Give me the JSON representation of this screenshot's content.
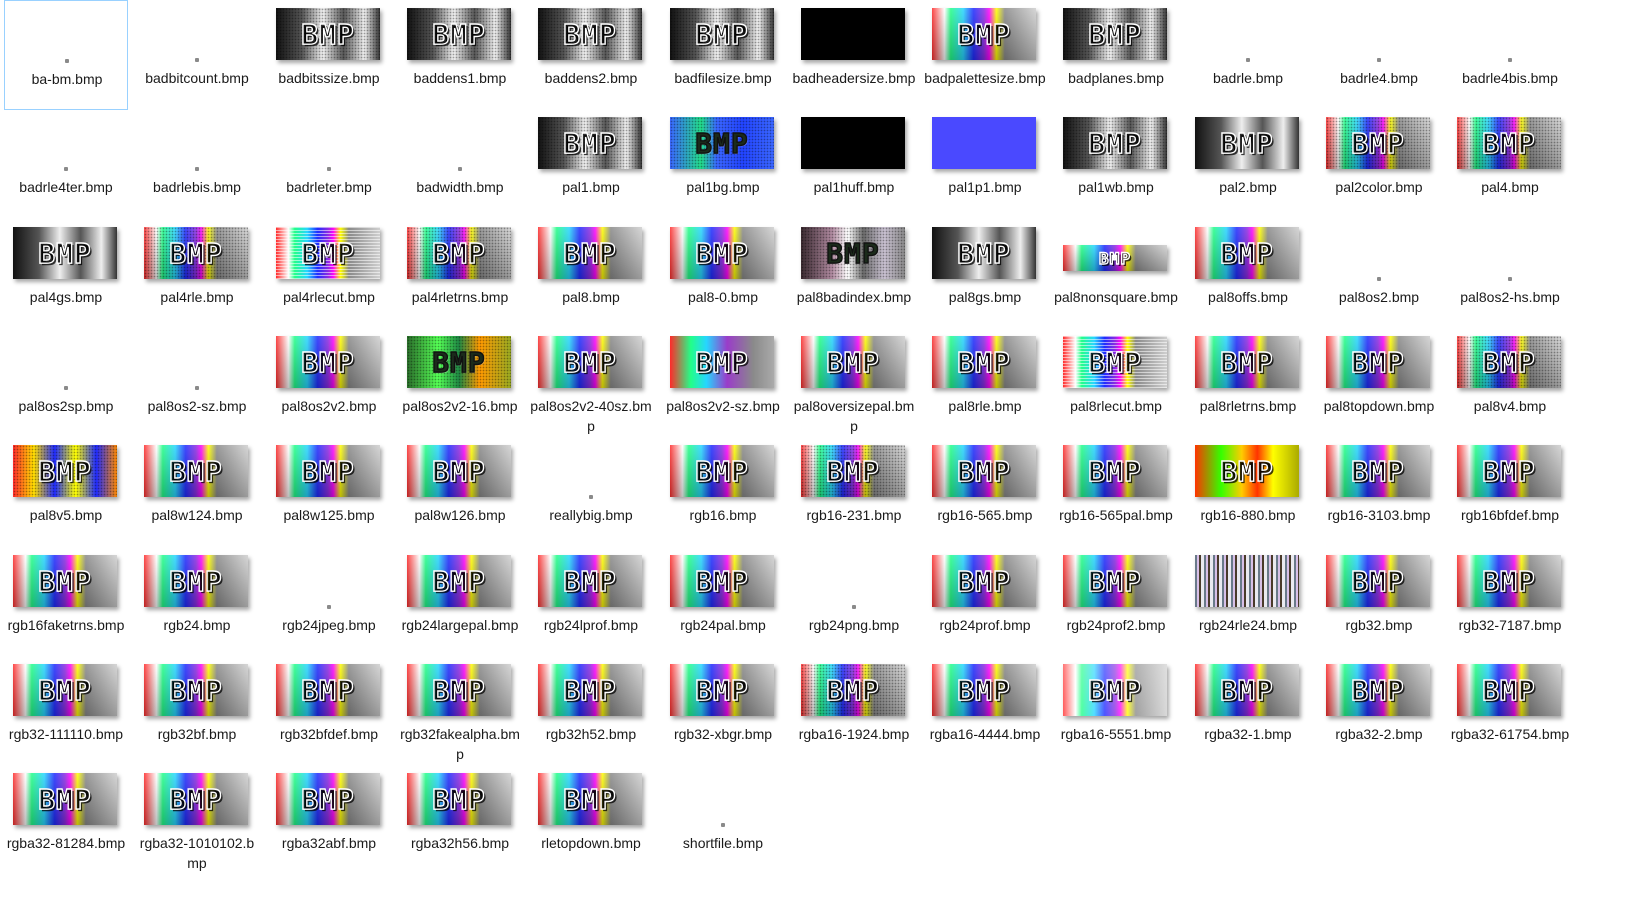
{
  "folder": {
    "items": [
      {
        "name": "ba-bm.bmp",
        "preview": "empty",
        "selected": true
      },
      {
        "name": "badbitcount.bmp",
        "preview": "empty"
      },
      {
        "name": "badbitssize.bmp",
        "preview": "gray-dither"
      },
      {
        "name": "baddens1.bmp",
        "preview": "gray-dither"
      },
      {
        "name": "baddens2.bmp",
        "preview": "gray-dither"
      },
      {
        "name": "badfilesize.bmp",
        "preview": "gray-dither"
      },
      {
        "name": "badheadersize.bmp",
        "preview": "black"
      },
      {
        "name": "badpalettesize.bmp",
        "preview": "color"
      },
      {
        "name": "badplanes.bmp",
        "preview": "gray-dither"
      },
      {
        "name": "badrle.bmp",
        "preview": "empty"
      },
      {
        "name": "badrle4.bmp",
        "preview": "empty"
      },
      {
        "name": "badrle4bis.bmp",
        "preview": "empty"
      },
      {
        "name": "badrle4ter.bmp",
        "preview": "empty"
      },
      {
        "name": "badrlebis.bmp",
        "preview": "empty"
      },
      {
        "name": "badrleter.bmp",
        "preview": "empty"
      },
      {
        "name": "badwidth.bmp",
        "preview": "empty"
      },
      {
        "name": "pal1.bmp",
        "preview": "gray-dither"
      },
      {
        "name": "pal1bg.bmp",
        "preview": "blue-green"
      },
      {
        "name": "pal1huff.bmp",
        "preview": "black"
      },
      {
        "name": "pal1p1.bmp",
        "preview": "solid-blue"
      },
      {
        "name": "pal1wb.bmp",
        "preview": "gray-dither"
      },
      {
        "name": "pal2.bmp",
        "preview": "gray"
      },
      {
        "name": "pal2color.bmp",
        "preview": "color-dither"
      },
      {
        "name": "pal4.bmp",
        "preview": "color-dither"
      },
      {
        "name": "pal4gs.bmp",
        "preview": "gray"
      },
      {
        "name": "pal4rle.bmp",
        "preview": "color-dither"
      },
      {
        "name": "pal4rlecut.bmp",
        "preview": "color-cut"
      },
      {
        "name": "pal4rletrns.bmp",
        "preview": "color-dither"
      },
      {
        "name": "pal8.bmp",
        "preview": "color"
      },
      {
        "name": "pal8-0.bmp",
        "preview": "color"
      },
      {
        "name": "pal8badindex.bmp",
        "preview": "badindex"
      },
      {
        "name": "pal8gs.bmp",
        "preview": "gray"
      },
      {
        "name": "pal8nonsquare.bmp",
        "preview": "color-wide"
      },
      {
        "name": "pal8offs.bmp",
        "preview": "color"
      },
      {
        "name": "pal8os2.bmp",
        "preview": "empty"
      },
      {
        "name": "pal8os2-hs.bmp",
        "preview": "empty"
      },
      {
        "name": "pal8os2sp.bmp",
        "preview": "empty"
      },
      {
        "name": "pal8os2-sz.bmp",
        "preview": "empty"
      },
      {
        "name": "pal8os2v2.bmp",
        "preview": "color"
      },
      {
        "name": "pal8os2v2-16.bmp",
        "preview": "green-dark"
      },
      {
        "name": "pal8os2v2-40sz.bmp",
        "preview": "color"
      },
      {
        "name": "pal8os2v2-sz.bmp",
        "preview": "color-purple"
      },
      {
        "name": "pal8oversizepal.bmp",
        "preview": "color"
      },
      {
        "name": "pal8rle.bmp",
        "preview": "color"
      },
      {
        "name": "pal8rlecut.bmp",
        "preview": "color-cut"
      },
      {
        "name": "pal8rletrns.bmp",
        "preview": "color"
      },
      {
        "name": "pal8topdown.bmp",
        "preview": "color"
      },
      {
        "name": "pal8v4.bmp",
        "preview": "color-dither"
      },
      {
        "name": "pal8v5.bmp",
        "preview": "v5"
      },
      {
        "name": "pal8w124.bmp",
        "preview": "color"
      },
      {
        "name": "pal8w125.bmp",
        "preview": "color"
      },
      {
        "name": "pal8w126.bmp",
        "preview": "color"
      },
      {
        "name": "reallybig.bmp",
        "preview": "empty"
      },
      {
        "name": "rgb16.bmp",
        "preview": "color"
      },
      {
        "name": "rgb16-231.bmp",
        "preview": "color-dither"
      },
      {
        "name": "rgb16-565.bmp",
        "preview": "color"
      },
      {
        "name": "rgb16-565pal.bmp",
        "preview": "color"
      },
      {
        "name": "rgb16-880.bmp",
        "preview": "yellow"
      },
      {
        "name": "rgb16-3103.bmp",
        "preview": "color"
      },
      {
        "name": "rgb16bfdef.bmp",
        "preview": "color"
      },
      {
        "name": "rgb16faketrns.bmp",
        "preview": "color"
      },
      {
        "name": "rgb24.bmp",
        "preview": "color"
      },
      {
        "name": "rgb24jpeg.bmp",
        "preview": "empty"
      },
      {
        "name": "rgb24largepal.bmp",
        "preview": "color"
      },
      {
        "name": "rgb24lprof.bmp",
        "preview": "color"
      },
      {
        "name": "rgb24pal.bmp",
        "preview": "color"
      },
      {
        "name": "rgb24png.bmp",
        "preview": "empty"
      },
      {
        "name": "rgb24prof.bmp",
        "preview": "color"
      },
      {
        "name": "rgb24prof2.bmp",
        "preview": "color"
      },
      {
        "name": "rgb24rle24.bmp",
        "preview": "noise"
      },
      {
        "name": "rgb32.bmp",
        "preview": "color"
      },
      {
        "name": "rgb32-7187.bmp",
        "preview": "color"
      },
      {
        "name": "rgb32-111110.bmp",
        "preview": "color"
      },
      {
        "name": "rgb32bf.bmp",
        "preview": "color"
      },
      {
        "name": "rgb32bfdef.bmp",
        "preview": "color"
      },
      {
        "name": "rgb32fakealpha.bmp",
        "preview": "color"
      },
      {
        "name": "rgb32h52.bmp",
        "preview": "color"
      },
      {
        "name": "rgb32-xbgr.bmp",
        "preview": "color"
      },
      {
        "name": "rgba16-1924.bmp",
        "preview": "color-dither"
      },
      {
        "name": "rgba16-4444.bmp",
        "preview": "color"
      },
      {
        "name": "rgba16-5551.bmp",
        "preview": "color-faded"
      },
      {
        "name": "rgba32-1.bmp",
        "preview": "color"
      },
      {
        "name": "rgba32-2.bmp",
        "preview": "color"
      },
      {
        "name": "rgba32-61754.bmp",
        "preview": "color"
      },
      {
        "name": "rgba32-81284.bmp",
        "preview": "color"
      },
      {
        "name": "rgba32-1010102.bmp",
        "preview": "color"
      },
      {
        "name": "rgba32abf.bmp",
        "preview": "color"
      },
      {
        "name": "rgba32h56.bmp",
        "preview": "color"
      },
      {
        "name": "rletopdown.bmp",
        "preview": "color"
      },
      {
        "name": "shortfile.bmp",
        "preview": "empty"
      }
    ],
    "logo_text": "BMP"
  }
}
